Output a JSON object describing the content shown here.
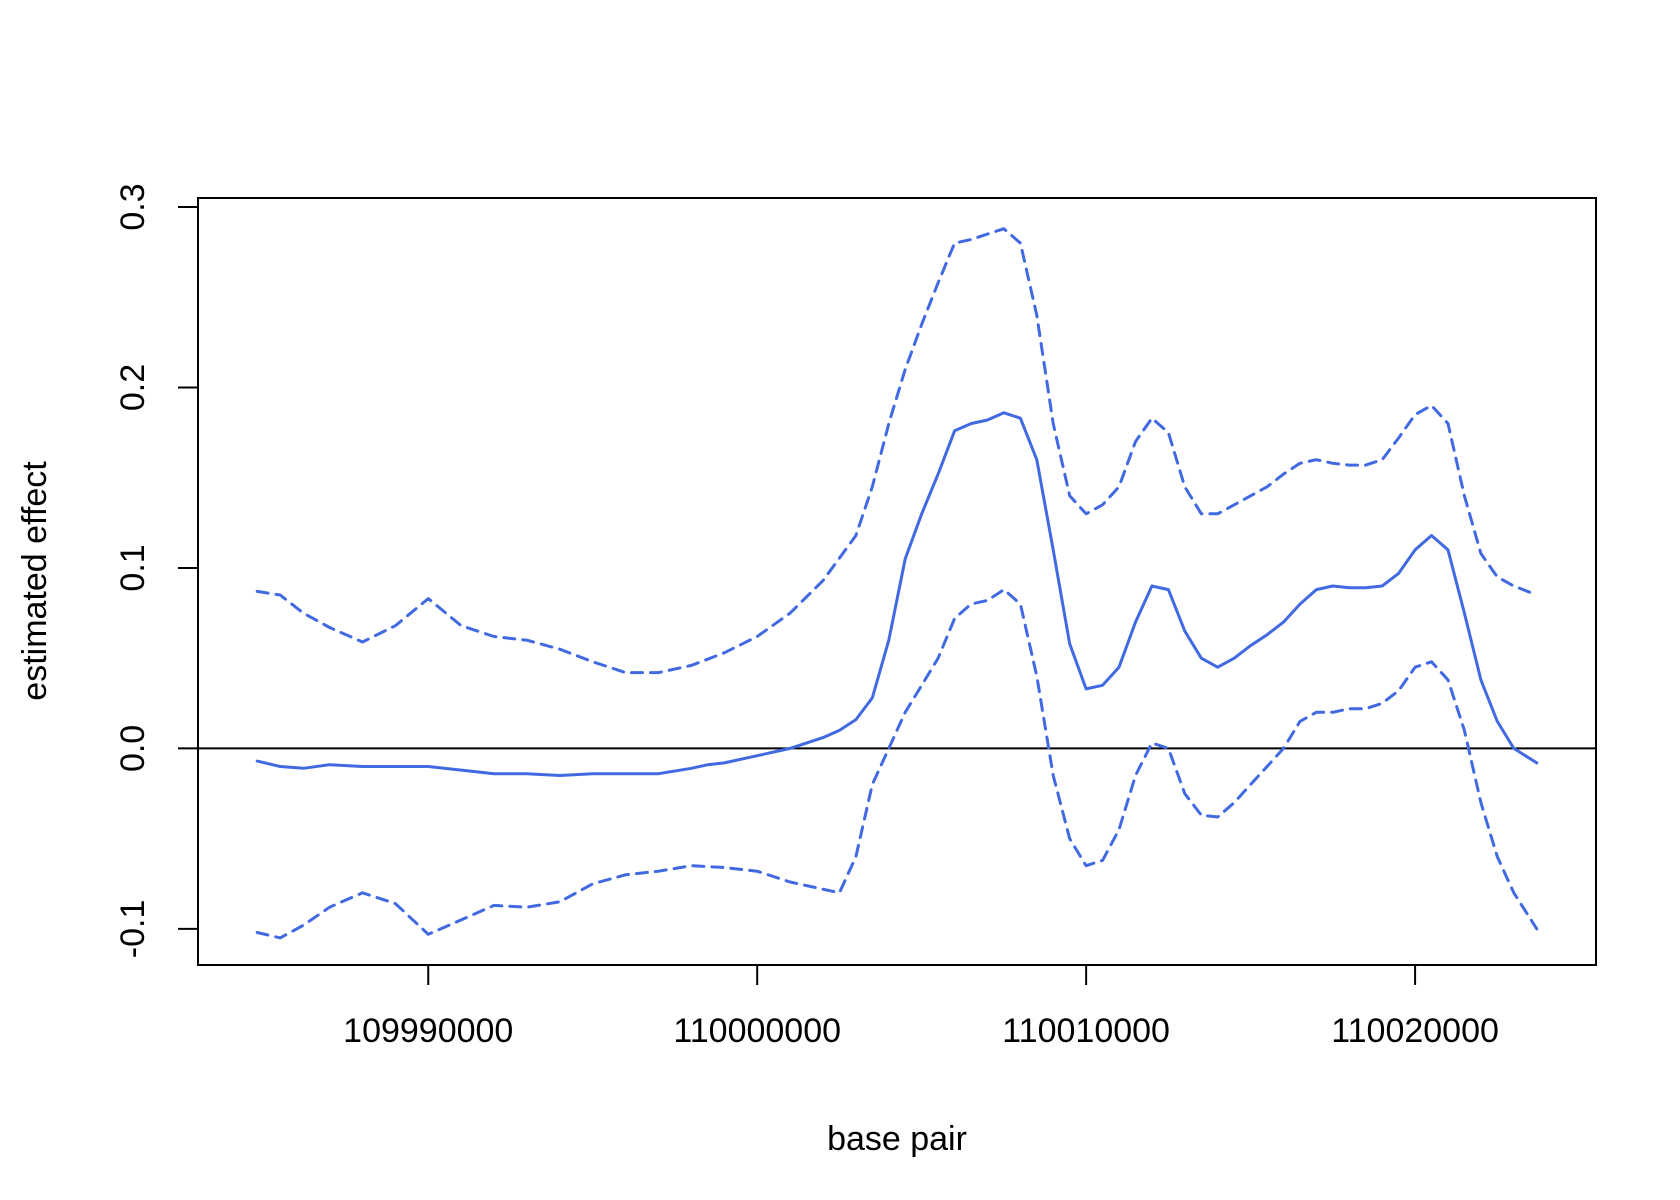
{
  "chart_data": {
    "type": "line",
    "title": "",
    "xlabel": "base pair",
    "ylabel": "estimated effect",
    "xlim": [
      109983000,
      110025500
    ],
    "ylim": [
      -0.12,
      0.305
    ],
    "xticks": [
      109990000,
      110000000,
      110010000,
      110020000
    ],
    "xtick_labels": [
      "109990000",
      "110000000",
      "110010000",
      "110020000"
    ],
    "yticks": [
      -0.1,
      0.0,
      0.1,
      0.2,
      0.3
    ],
    "ytick_labels": [
      "-0.1",
      "0.0",
      "0.1",
      "0.2",
      "0.3"
    ],
    "hline": 0.0,
    "grid": false,
    "legend": "none",
    "colors": {
      "series": "#4169e1",
      "axis": "#000000",
      "reference_line": "#000000"
    },
    "series": [
      {
        "style": "solid",
        "x": [
          109984800,
          109985500,
          109986200,
          109987000,
          109988000,
          109989000,
          109990000,
          109991000,
          109992000,
          109993000,
          109994000,
          109995000,
          109996000,
          109997000,
          109998000,
          109998500,
          109999000,
          110000000,
          110001000,
          110002000,
          110002500,
          110003000,
          110003500,
          110004000,
          110004500,
          110005000,
          110005500,
          110006000,
          110006500,
          110007000,
          110007500,
          110008000,
          110008500,
          110009000,
          110009500,
          110010000,
          110010500,
          110011000,
          110011500,
          110012000,
          110012500,
          110013000,
          110013500,
          110014000,
          110014500,
          110015000,
          110015500,
          110016000,
          110016500,
          110017000,
          110017500,
          110018000,
          110018500,
          110019000,
          110019500,
          110020000,
          110020500,
          110021000,
          110021500,
          110022000,
          110022500,
          110023000,
          110023700
        ],
        "y": [
          -0.007,
          -0.01,
          -0.011,
          -0.009,
          -0.01,
          -0.01,
          -0.01,
          -0.012,
          -0.014,
          -0.014,
          -0.015,
          -0.014,
          -0.014,
          -0.014,
          -0.011,
          -0.009,
          -0.008,
          -0.004,
          0.0,
          0.006,
          0.01,
          0.016,
          0.028,
          0.06,
          0.105,
          0.13,
          0.152,
          0.176,
          0.18,
          0.182,
          0.186,
          0.183,
          0.16,
          0.11,
          0.058,
          0.033,
          0.035,
          0.045,
          0.07,
          0.09,
          0.088,
          0.065,
          0.05,
          0.045,
          0.05,
          0.057,
          0.063,
          0.07,
          0.08,
          0.088,
          0.09,
          0.089,
          0.089,
          0.09,
          0.097,
          0.11,
          0.118,
          0.11,
          0.075,
          0.038,
          0.015,
          0.0,
          -0.008
        ]
      },
      {
        "style": "dashed",
        "x": [
          109984800,
          109985500,
          109986200,
          109987000,
          109988000,
          109989000,
          109990000,
          109991000,
          109992000,
          109993000,
          109994000,
          109995000,
          109996000,
          109997000,
          109998000,
          109999000,
          110000000,
          110001000,
          110002000,
          110003000,
          110003500,
          110004000,
          110004500,
          110005000,
          110005500,
          110006000,
          110006500,
          110007000,
          110007500,
          110008000,
          110008500,
          110009000,
          110009500,
          110010000,
          110010500,
          110011000,
          110011500,
          110012000,
          110012500,
          110013000,
          110013500,
          110014000,
          110014500,
          110015000,
          110015500,
          110016000,
          110016500,
          110017000,
          110017500,
          110018000,
          110018500,
          110019000,
          110019500,
          110020000,
          110020500,
          110021000,
          110021500,
          110022000,
          110022500,
          110023000,
          110023700
        ],
        "y": [
          0.087,
          0.085,
          0.075,
          0.067,
          0.059,
          0.068,
          0.083,
          0.068,
          0.062,
          0.06,
          0.055,
          0.048,
          0.042,
          0.042,
          0.046,
          0.053,
          0.062,
          0.075,
          0.093,
          0.118,
          0.145,
          0.18,
          0.21,
          0.235,
          0.258,
          0.28,
          0.282,
          0.285,
          0.288,
          0.28,
          0.24,
          0.18,
          0.14,
          0.13,
          0.135,
          0.145,
          0.17,
          0.183,
          0.175,
          0.145,
          0.13,
          0.13,
          0.135,
          0.14,
          0.145,
          0.152,
          0.158,
          0.16,
          0.158,
          0.157,
          0.157,
          0.16,
          0.172,
          0.185,
          0.19,
          0.18,
          0.14,
          0.108,
          0.095,
          0.09,
          0.085
        ]
      },
      {
        "style": "dashed",
        "x": [
          109984800,
          109985500,
          109986200,
          109987000,
          109988000,
          109989000,
          109990000,
          109991000,
          109992000,
          109993000,
          109994000,
          109995000,
          109996000,
          109997000,
          109998000,
          109999000,
          110000000,
          110001000,
          110002000,
          110002500,
          110003000,
          110003500,
          110004000,
          110004500,
          110005000,
          110005500,
          110006000,
          110006500,
          110007000,
          110007500,
          110008000,
          110008500,
          110009000,
          110009500,
          110010000,
          110010500,
          110011000,
          110011500,
          110012000,
          110012500,
          110013000,
          110013500,
          110014000,
          110014500,
          110015000,
          110015500,
          110016000,
          110016500,
          110017000,
          110017500,
          110018000,
          110018500,
          110019000,
          110019500,
          110020000,
          110020500,
          110021000,
          110021500,
          110022000,
          110022500,
          110023000,
          110023700
        ],
        "y": [
          -0.102,
          -0.105,
          -0.098,
          -0.088,
          -0.08,
          -0.086,
          -0.103,
          -0.095,
          -0.087,
          -0.088,
          -0.085,
          -0.075,
          -0.07,
          -0.068,
          -0.065,
          -0.066,
          -0.068,
          -0.074,
          -0.078,
          -0.08,
          -0.06,
          -0.02,
          0.0,
          0.02,
          0.035,
          0.05,
          0.072,
          0.08,
          0.082,
          0.088,
          0.08,
          0.04,
          -0.015,
          -0.05,
          -0.065,
          -0.062,
          -0.045,
          -0.015,
          0.003,
          0.0,
          -0.025,
          -0.037,
          -0.038,
          -0.03,
          -0.02,
          -0.01,
          0.0,
          0.015,
          0.02,
          0.02,
          0.022,
          0.022,
          0.025,
          0.032,
          0.045,
          0.048,
          0.038,
          0.01,
          -0.03,
          -0.06,
          -0.08,
          -0.1
        ]
      }
    ]
  }
}
